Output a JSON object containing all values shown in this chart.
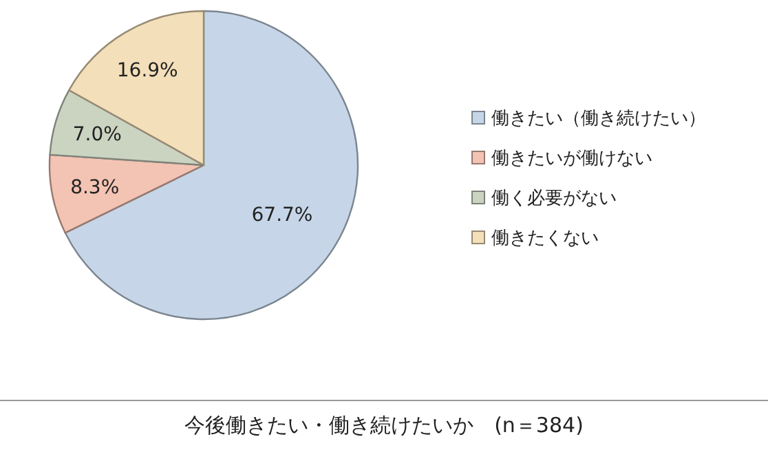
{
  "chart_data": {
    "type": "pie",
    "title": "今後働きたい・働き続けたいか　(n＝384)",
    "categories": [
      "働きたい（働き続けたい）",
      "働きたいが働けない",
      "働く必要がない",
      "働きたくない"
    ],
    "values": [
      67.7,
      8.3,
      7.0,
      16.9
    ],
    "colors": [
      "#c6d6e8",
      "#f3c3b3",
      "#cbd3c1",
      "#f3dfb9"
    ],
    "value_labels": [
      "67.7%",
      "8.3%",
      "7.0%",
      "16.9%"
    ],
    "legend": "right"
  }
}
